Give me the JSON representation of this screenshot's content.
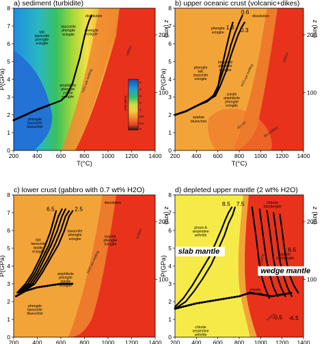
{
  "chart_data": [
    {
      "type": "heatmap",
      "title": "a) sediment (turbidite)",
      "xlabel": "T(°C)",
      "ylabel": "P(GPa)",
      "y2label": "z (km)",
      "xlim": [
        200,
        1400
      ],
      "ylim": [
        0,
        8
      ],
      "xticks": [
        "200",
        "400",
        "600",
        "800",
        "1000",
        "1200",
        "1400"
      ],
      "yticks": [
        "0",
        "1",
        "2",
        "3",
        "4",
        "5",
        "6",
        "7",
        "8"
      ],
      "y2ticks": [
        "100",
        "200"
      ],
      "colorbar": {
        "label": "H2O (wt%)",
        "ticks": [
          "5",
          "4",
          "3",
          "2",
          "1",
          "0.5",
          "0.1",
          "0"
        ]
      },
      "fields": [
        {
          "text": [
            "talc",
            "lawsonite",
            "phengite",
            "eclogite"
          ],
          "x": 440,
          "y": 6.6
        },
        {
          "text": [
            "lawsonite",
            "phengite",
            "eclogite"
          ],
          "x": 665,
          "y": 6.9
        },
        {
          "text": [
            "dissolution"
          ],
          "x": 880,
          "y": 7.5
        },
        {
          "text": [
            "phengite",
            "eclogite"
          ],
          "x": 860,
          "y": 6.7
        },
        {
          "text": [
            "amphibole",
            "phengite",
            "zoisite",
            "eclogite"
          ],
          "x": 660,
          "y": 3.6
        },
        {
          "text": [
            "phengite",
            "lawsonite",
            "blueschist"
          ],
          "x": 380,
          "y": 1.7
        },
        {
          "text": [
            "H2O-sat melting"
          ],
          "x": 830,
          "y": 3.9,
          "rot": -70
        },
        {
          "text": [
            "solidus"
          ],
          "x": 1185,
          "y": 5.6,
          "rot": -70
        }
      ],
      "series": [
        {
          "line_style": "solid-thick",
          "x": [
            200,
            300,
            400,
            500,
            600,
            650,
            700,
            730,
            760,
            780,
            800,
            820,
            840,
            860
          ],
          "y": [
            1.7,
            2.0,
            2.3,
            2.55,
            2.8,
            3.1,
            3.8,
            4.5,
            5.2,
            5.8,
            6.4,
            6.9,
            7.3,
            7.6
          ]
        },
        {
          "line_style": "dotted-thick",
          "x": [
            200,
            300,
            400,
            500
          ],
          "y": [
            1.7,
            2.0,
            2.3,
            2.55
          ]
        }
      ]
    },
    {
      "type": "heatmap",
      "title": "b) upper oceanic crust (volcanic+dikes)",
      "xlabel": "T(°C)",
      "ylabel": "",
      "y2label": "z (km)",
      "xlim": [
        200,
        1400
      ],
      "ylim": [
        0,
        8
      ],
      "xticks": [
        "200",
        "400",
        "600",
        "800",
        "1000",
        "1200",
        "1400"
      ],
      "yticks": [
        "0",
        "1",
        "2",
        "3",
        "4",
        "5",
        "6",
        "7",
        "8"
      ],
      "y2ticks": [
        "100",
        "200"
      ],
      "slab_labels": [
        "1.3",
        "0.6",
        "0.3"
      ],
      "fields": [
        {
          "text": [
            "dissolution"
          ],
          "x": 1000,
          "y": 7.5
        },
        {
          "text": [
            "phengite",
            "eclogite"
          ],
          "x": 600,
          "y": 6.8
        },
        {
          "text": [
            "lawsonite",
            "phengite",
            "eclogite"
          ],
          "x": 670,
          "y": 4.9
        },
        {
          "text": [
            "phengite",
            "talc",
            "lawsonite",
            "eclogite"
          ],
          "x": 440,
          "y": 4.6
        },
        {
          "text": [
            "zoisite",
            "amphibole",
            "phengite",
            "eclogite"
          ],
          "x": 730,
          "y": 3.1
        },
        {
          "text": [
            "epidote",
            "blueschist"
          ],
          "x": 420,
          "y": 1.8
        },
        {
          "text": [
            "H2O-sat melting"
          ],
          "x": 880,
          "y": 4.2,
          "rot": -65
        },
        {
          "text": [
            "solidus"
          ],
          "x": 1240,
          "y": 5.2,
          "rot": -70
        },
        {
          "text": [
            "dry solidus"
          ],
          "x": 1100,
          "y": 1.0,
          "rot": -35
        },
        {
          "text": [
            "dry sol."
          ],
          "x": 830,
          "y": 1.4,
          "rot": -40
        }
      ],
      "series": [
        {
          "name": "1.3",
          "line_style": "solid-thick",
          "x": [
            200,
            300,
            400,
            500,
            550,
            600,
            620,
            650,
            680,
            700,
            720,
            740
          ],
          "y": [
            2.0,
            2.2,
            2.5,
            2.75,
            3.0,
            3.5,
            4.2,
            5.0,
            5.8,
            6.3,
            6.8,
            7.2
          ]
        },
        {
          "name": "0.6",
          "line_style": "solid-thick",
          "x": [
            200,
            300,
            400,
            500,
            560,
            600,
            650,
            700,
            720,
            760,
            800,
            830
          ],
          "y": [
            2.0,
            2.2,
            2.5,
            2.8,
            3.1,
            3.6,
            4.5,
            5.4,
            5.9,
            6.6,
            7.2,
            7.6
          ]
        },
        {
          "name": "0.3",
          "line_style": "solid-thick",
          "x": [
            200,
            300,
            400,
            500,
            580,
            620,
            680,
            720,
            760,
            790,
            820,
            850
          ],
          "y": [
            2.0,
            2.2,
            2.5,
            2.8,
            3.1,
            3.6,
            4.5,
            5.3,
            6.0,
            6.5,
            6.9,
            7.2
          ]
        },
        {
          "line_style": "dotted-thick",
          "x": [
            200,
            300,
            400,
            500,
            580
          ],
          "y": [
            2.0,
            2.2,
            2.5,
            2.8,
            3.1
          ]
        }
      ]
    },
    {
      "type": "heatmap",
      "title": "c) lower crust (gabbro with 0.7 wt% H2O)",
      "xlabel": "T(°C)",
      "ylabel": "P(GPa)",
      "y2label": "z (km)",
      "xlim": [
        200,
        1400
      ],
      "ylim": [
        0,
        8
      ],
      "xticks": [
        "200",
        "400",
        "600",
        "800",
        "1000",
        "1200",
        "1400"
      ],
      "yticks": [
        "0",
        "1",
        "2",
        "3",
        "4",
        "5",
        "6",
        "7",
        "8"
      ],
      "y2ticks": [
        "100",
        "200"
      ],
      "slab_labels": [
        "6.5",
        "2.5"
      ],
      "fields": [
        {
          "text": [
            "talc",
            "lawsonite",
            "biotite",
            "eclogite"
          ],
          "x": 410,
          "y": 5.4
        },
        {
          "text": [
            "lawsonite",
            "phengite",
            "eclogite"
          ],
          "x": 720,
          "y": 5.9
        },
        {
          "text": [
            "dissolution"
          ],
          "x": 1040,
          "y": 7.5
        },
        {
          "text": [
            "kyanite",
            "phengite",
            "eclogite"
          ],
          "x": 1020,
          "y": 5.6
        },
        {
          "text": [
            "amphibole",
            "phengite",
            "zoisite",
            "eclogite"
          ],
          "x": 640,
          "y": 3.5
        },
        {
          "text": [
            "phengite",
            "lawsonite",
            "blueschist"
          ],
          "x": 380,
          "y": 1.7
        },
        {
          "text": [
            "H2O-sat melting"
          ],
          "x": 880,
          "y": 4.2,
          "rot": -65
        },
        {
          "text": [
            "solidus"
          ],
          "x": 1270,
          "y": 5.8,
          "rot": -70
        }
      ],
      "series": [
        {
          "name": "6.5",
          "line_style": "solid-thick",
          "x": [
            230,
            300,
            360,
            420,
            470,
            510,
            540,
            560
          ],
          "y": [
            2.5,
            3.0,
            3.6,
            4.4,
            5.2,
            5.9,
            6.6,
            7.1
          ]
        },
        {
          "line_style": "solid-thick",
          "x": [
            240,
            320,
            380,
            440,
            500,
            540,
            580,
            610
          ],
          "y": [
            2.5,
            3.0,
            3.6,
            4.4,
            5.2,
            6.0,
            6.8,
            7.2
          ]
        },
        {
          "line_style": "solid-thick",
          "x": [
            250,
            340,
            400,
            460,
            520,
            570,
            610,
            640
          ],
          "y": [
            2.5,
            3.0,
            3.6,
            4.4,
            5.2,
            6.0,
            6.8,
            7.2
          ]
        },
        {
          "line_style": "solid-thick",
          "x": [
            260,
            360,
            420,
            490,
            550,
            600,
            640,
            670
          ],
          "y": [
            2.5,
            3.0,
            3.6,
            4.4,
            5.2,
            6.0,
            6.8,
            7.1
          ]
        },
        {
          "name": "2.5",
          "line_style": "solid-thick",
          "x": [
            270,
            380,
            440,
            510,
            580,
            630,
            670,
            700
          ],
          "y": [
            2.5,
            3.0,
            3.6,
            4.4,
            5.2,
            6.0,
            6.8,
            7.1
          ]
        },
        {
          "line_style": "dotted-thick",
          "x": [
            220,
            300,
            400,
            500,
            600,
            700
          ],
          "y": [
            2.3,
            2.6,
            2.8,
            2.9,
            3.0,
            3.0
          ]
        }
      ]
    },
    {
      "type": "heatmap",
      "title": "d) depleted upper mantle (2 wt% H2O)",
      "xlabel": "T(°C)",
      "ylabel": "",
      "y2label": "z (km)",
      "xlim": [
        200,
        1400
      ],
      "ylim": [
        0,
        8
      ],
      "xticks": [
        "200",
        "400",
        "600",
        "800",
        "1000",
        "1200",
        "1400"
      ],
      "yticks": [
        "0",
        "1",
        "2",
        "3",
        "4",
        "5",
        "6",
        "7",
        "8"
      ],
      "y2ticks": [
        "100",
        "200"
      ],
      "annotations": [
        "slab mantle",
        "wedge mantle"
      ],
      "slab_labels": [
        "8.5",
        "7.5",
        "-0.5",
        "-6.5",
        "6.5"
      ],
      "fields": [
        {
          "text": [
            "phase A",
            "serpentine",
            "wehrlite"
          ],
          "x": 440,
          "y": 6.1
        },
        {
          "text": [
            "chlorite",
            "harzburgite"
          ],
          "x": 1110,
          "y": 7.5
        },
        {
          "text": [
            "garnet",
            "harzburgite"
          ],
          "x": 1230,
          "y": 4.6
        },
        {
          "text": [
            "chlorite",
            "lherzolite"
          ],
          "x": 950,
          "y": 2.6
        },
        {
          "text": [
            "chlorite",
            "serpentine",
            "wehrlite"
          ],
          "x": 440,
          "y": 0.5
        },
        {
          "text": [
            "H2O-sat melting"
          ],
          "x": 1010,
          "y": 4.0,
          "rot": -80
        },
        {
          "text": [
            "solidus"
          ],
          "x": 1100,
          "y": 1.1,
          "rot": -40
        }
      ],
      "series": [
        {
          "name": "8.5",
          "line_style": "solid-thick",
          "x": [
            200,
            280,
            360,
            440,
            520,
            580,
            630,
            670,
            700,
            730
          ],
          "y": [
            1.7,
            2.2,
            2.9,
            3.7,
            4.5,
            5.3,
            6.0,
            6.6,
            7.0,
            7.3
          ]
        },
        {
          "name": "7.5",
          "line_style": "solid-thick",
          "x": [
            200,
            300,
            380,
            460,
            540,
            600,
            660,
            700,
            740,
            760
          ],
          "y": [
            1.6,
            2.0,
            2.6,
            3.3,
            4.1,
            4.9,
            5.7,
            6.4,
            6.9,
            7.3
          ]
        },
        {
          "line_style": "solid-thick",
          "x": [
            920,
            940,
            960,
            980,
            1000,
            1040,
            1080
          ],
          "y": [
            7.3,
            6.4,
            5.5,
            4.5,
            3.6,
            2.8,
            2.2
          ]
        },
        {
          "name": "-0.5",
          "line_style": "solid-thick",
          "x": [
            990,
            1010,
            1030,
            1050,
            1080,
            1120,
            1160
          ],
          "y": [
            7.2,
            6.3,
            5.4,
            4.5,
            3.6,
            2.8,
            2.3
          ]
        },
        {
          "line_style": "solid-thick",
          "x": [
            1060,
            1080,
            1100,
            1120,
            1150,
            1190,
            1230
          ],
          "y": [
            7.1,
            6.2,
            5.3,
            4.4,
            3.5,
            2.8,
            2.3
          ]
        },
        {
          "line_style": "solid-thick",
          "x": [
            1120,
            1140,
            1160,
            1180,
            1210,
            1250,
            1290
          ],
          "y": [
            7.0,
            6.1,
            5.2,
            4.3,
            3.5,
            2.8,
            2.3
          ]
        },
        {
          "name": "-6.5",
          "line_style": "solid-thick",
          "x": [
            1180,
            1200,
            1220,
            1240,
            1270,
            1310,
            1350
          ],
          "y": [
            6.9,
            6.0,
            5.1,
            4.3,
            3.5,
            2.9,
            2.5
          ]
        },
        {
          "line_style": "dotted-thick",
          "x": [
            200,
            400,
            600,
            800,
            900,
            1000,
            1100,
            1200,
            1300
          ],
          "y": [
            1.6,
            1.9,
            2.1,
            2.3,
            2.5,
            2.4,
            2.3,
            2.4,
            2.5
          ]
        }
      ]
    }
  ]
}
